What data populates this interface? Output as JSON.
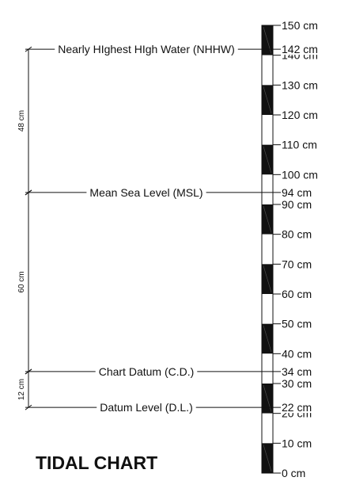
{
  "title": "TIDAL CHART",
  "staff": {
    "min_cm": 0,
    "max_cm": 150,
    "segment_cm": 10,
    "colors": {
      "dark": "#111111",
      "light": "#ffffff"
    },
    "ticks": [
      {
        "value": 150,
        "label": "150 cm"
      },
      {
        "value": 140,
        "label": "140 cm"
      },
      {
        "value": 130,
        "label": "130 cm"
      },
      {
        "value": 120,
        "label": "120 cm"
      },
      {
        "value": 110,
        "label": "110 cm"
      },
      {
        "value": 100,
        "label": "100 cm"
      },
      {
        "value": 90,
        "label": "90 cm"
      },
      {
        "value": 80,
        "label": "80 cm"
      },
      {
        "value": 70,
        "label": "70 cm"
      },
      {
        "value": 60,
        "label": "60 cm"
      },
      {
        "value": 50,
        "label": "50 cm"
      },
      {
        "value": 40,
        "label": "40 cm"
      },
      {
        "value": 30,
        "label": "30 cm"
      },
      {
        "value": 20,
        "label": "20 cm"
      },
      {
        "value": 10,
        "label": "10 cm"
      },
      {
        "value": 0,
        "label": "0 cm"
      }
    ]
  },
  "levels": [
    {
      "id": "nhhw",
      "name": "Nearly HIghest HIgh Water (NHHW)",
      "value": 142,
      "value_label": "142 cm"
    },
    {
      "id": "msl",
      "name": "Mean Sea Level (MSL)",
      "value": 94,
      "value_label": "94 cm"
    },
    {
      "id": "cd",
      "name": "Chart Datum (C.D.)",
      "value": 34,
      "value_label": "34 cm"
    },
    {
      "id": "dl",
      "name": "Datum Level (D.L.)",
      "value": 22,
      "value_label": "22 cm"
    }
  ],
  "dimensions": [
    {
      "from": "msl",
      "to": "nhhw",
      "label": "48 cm"
    },
    {
      "from": "cd",
      "to": "msl",
      "label": "60 cm"
    },
    {
      "from": "dl",
      "to": "cd",
      "label": "12 cm"
    }
  ]
}
